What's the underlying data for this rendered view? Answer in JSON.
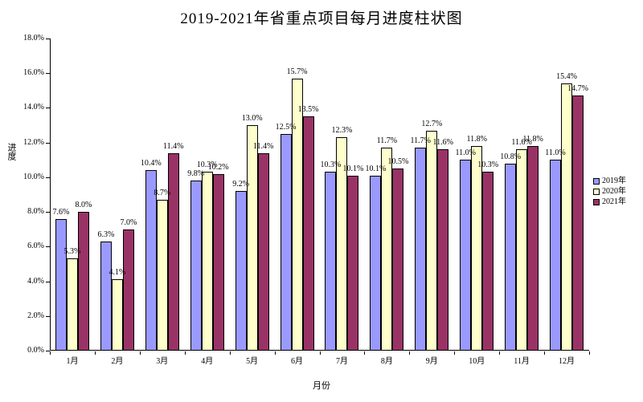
{
  "chart_data": {
    "type": "bar",
    "title": "2019-2021年省重点项目每月进度柱状图",
    "xlabel": "月份",
    "ylabel": "进度",
    "categories": [
      "1月",
      "2月",
      "3月",
      "4月",
      "5月",
      "6月",
      "7月",
      "8月",
      "9月",
      "10月",
      "11月",
      "12月"
    ],
    "series": [
      {
        "name": "2019年",
        "color": "#9999FF",
        "values": [
          7.6,
          6.3,
          10.4,
          9.8,
          9.2,
          12.5,
          10.3,
          10.1,
          11.7,
          11.0,
          10.8,
          11.0
        ]
      },
      {
        "name": "2020年",
        "color": "#FFFFCC",
        "values": [
          5.3,
          4.1,
          8.7,
          10.3,
          13.0,
          15.7,
          12.3,
          11.7,
          12.7,
          11.8,
          11.6,
          15.4
        ]
      },
      {
        "name": "2021年",
        "color": "#993366",
        "values": [
          8.0,
          7.0,
          11.4,
          10.2,
          11.4,
          13.5,
          10.1,
          10.5,
          11.6,
          10.3,
          11.8,
          14.7
        ]
      }
    ],
    "ylim": [
      0,
      18
    ],
    "ytick_step": 2,
    "ytick_labels": [
      "0.0%",
      "2.0%",
      "4.0%",
      "6.0%",
      "8.0%",
      "10.0%",
      "12.0%",
      "14.0%",
      "16.0%",
      "18.0%"
    ],
    "data_labels": [
      [
        "7.6%",
        "6.3%",
        "10.4%",
        "9.8%",
        "9.2%",
        "12.5%",
        "10.3%",
        "10.1%",
        "11.7%",
        "11.0%",
        "10.8%",
        "11.0%"
      ],
      [
        "5.3%",
        "4.1%",
        "8.7%",
        "10.3%",
        "13.0%",
        "15.7%",
        "12.3%",
        "11.7%",
        "12.7%",
        "11.8%",
        "11.6%",
        "15.4%"
      ],
      [
        "8.0%",
        "7.0%",
        "11.4%",
        "10.2%",
        "11.4%",
        "13.5%",
        "10.1%",
        "10.5%",
        "11.6%",
        "10.3%",
        "11.8%",
        "14.7%"
      ]
    ],
    "grid": false,
    "legend_position": "right",
    "bar_border_color": "#000000",
    "background_color": "#FFFFFF"
  }
}
